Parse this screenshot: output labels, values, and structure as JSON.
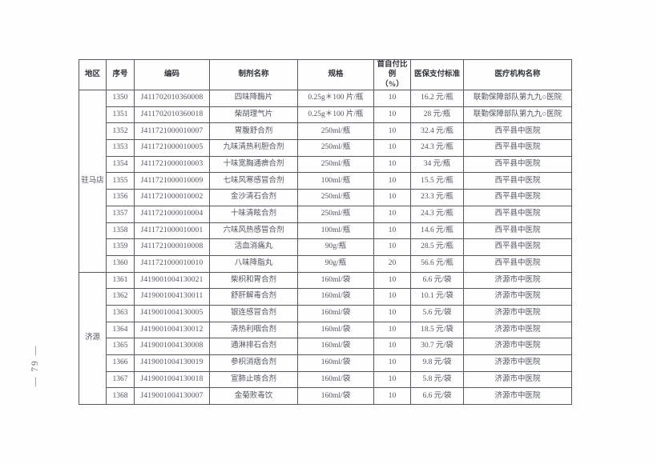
{
  "page": {
    "page_number": "— 79 —"
  },
  "table": {
    "headers": [
      "地区",
      "序号",
      "编码",
      "制剂名称",
      "规格",
      "首自付比例\n（%）",
      "医保支付标准",
      "医疗机构名称"
    ],
    "groups": [
      {
        "region": "驻马店",
        "rows": [
          [
            "1350",
            "J411702010360008",
            "四味降酶片",
            "0.25g＊100 片/瓶",
            "10",
            "16.2 元/瓶",
            "联勤保障部队第九九○医院"
          ],
          [
            "1351",
            "J411702010360018",
            "柴胡理气片",
            "0.25g＊100 片/瓶",
            "10",
            "28 元/瓶",
            "联勤保障部队第九九○医院"
          ],
          [
            "1352",
            "J411721000010007",
            "胃腹舒合剂",
            "250ml/瓶",
            "10",
            "32.4 元/瓶",
            "西平县中医院"
          ],
          [
            "1353",
            "J411721000010005",
            "九味清热利胆合剂",
            "250ml/瓶",
            "10",
            "24.3 元/瓶",
            "西平县中医院"
          ],
          [
            "1354",
            "J411721000010003",
            "十味宽胸通痹合剂",
            "250ml/瓶",
            "10",
            "34 元/瓶",
            "西平县中医院"
          ],
          [
            "1355",
            "J411721000010009",
            "七味风寒感冒合剂",
            "100ml/瓶",
            "10",
            "15.5 元/瓶",
            "西平县中医院"
          ],
          [
            "1356",
            "J411721000010002",
            "金沙清石合剂",
            "250ml/瓶",
            "10",
            "23.3 元/瓶",
            "西平县中医院"
          ],
          [
            "1357",
            "J411721000010004",
            "十味清眩合剂",
            "250ml/瓶",
            "10",
            "24.3 元/瓶",
            "西平县中医院"
          ],
          [
            "1358",
            "J411721000010001",
            "六味风热感冒合剂",
            "100ml/瓶",
            "10",
            "14.6 元/瓶",
            "西平县中医院"
          ],
          [
            "1359",
            "J411721000010008",
            "活血消痛丸",
            "90g/瓶",
            "10",
            "28.5 元/瓶",
            "西平县中医院"
          ],
          [
            "1360",
            "J411721000010010",
            "八味降脂丸",
            "90g/瓶",
            "20",
            "56.6 元/瓶",
            "西平县中医院"
          ]
        ]
      },
      {
        "region": "济源",
        "rows": [
          [
            "1361",
            "J419001004130021",
            "柴枳和胃合剂",
            "160ml/袋",
            "10",
            "6.6 元/袋",
            "济源市中医院"
          ],
          [
            "1362",
            "J419001004130011",
            "舒肝解毒合剂",
            "160ml/袋",
            "10",
            "10.1 元/袋",
            "济源市中医院"
          ],
          [
            "1363",
            "J419001004130005",
            "银连感冒合剂",
            "160ml/袋",
            "10",
            "5.6 元/袋",
            "济源市中医院"
          ],
          [
            "1364",
            "J419001004130012",
            "清热利咽合剂",
            "160ml/袋",
            "10",
            "18.5 元/袋",
            "济源市中医院"
          ],
          [
            "1365",
            "J419001004130008",
            "通淋排石合剂",
            "160ml/袋",
            "10",
            "30.7 元/袋",
            "济源市中医院"
          ],
          [
            "1366",
            "J419001004130019",
            "参枳消痞合剂",
            "160ml/袋",
            "10",
            "9.8 元/袋",
            "济源市中医院"
          ],
          [
            "1367",
            "J419001004130018",
            "宣肺止咳合剂",
            "160ml/袋",
            "10",
            "5.8 元/袋",
            "济源市中医院"
          ],
          [
            "1368",
            "J419001004130007",
            "金菊败毒饮",
            "160ml/袋",
            "10",
            "6.6 元/袋",
            "济源市中医院"
          ]
        ]
      }
    ]
  }
}
